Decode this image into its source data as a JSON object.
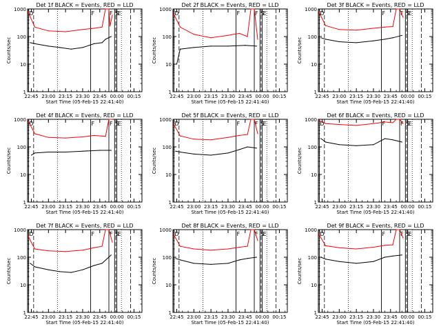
{
  "figure": {
    "xlabel": "Start Time (05-Feb-15 22:41:40)",
    "ylabel": "Counts/sec",
    "x_tick_labels": [
      "22:45",
      "23:00",
      "23:15",
      "23:30",
      "23:45",
      "00:00",
      "00:15"
    ],
    "y_tick_labels": [
      "1",
      "10",
      "100",
      "1000"
    ],
    "colors": {
      "events": "#000000",
      "lld": "#ff0000",
      "axes": "#000000"
    }
  },
  "chart_data": [
    {
      "type": "line",
      "title": "Det 1f BLACK = Events, RED = LLD",
      "ylim": [
        1,
        1000
      ],
      "xlim": [
        "22:41:40",
        "00:22"
      ],
      "markers": [
        {
          "time": "22:42:30",
          "label": "D"
        },
        {
          "time": "23:37",
          "label": "F"
        },
        {
          "time": "23:53",
          "label": "F"
        },
        {
          "time": "23:58",
          "label": "S"
        },
        {
          "time": "00:00",
          "label": "E"
        }
      ],
      "series": [
        {
          "name": "LLD",
          "color": "#ff0000",
          "x": [
            "22:42",
            "22:48",
            "23:00",
            "23:15",
            "23:30",
            "23:40",
            "23:47",
            "23:50",
            "23:53",
            "23:54",
            "23:56"
          ],
          "values": [
            800,
            220,
            160,
            150,
            180,
            200,
            220,
            1000,
            1000,
            240,
            600
          ]
        },
        {
          "name": "Events",
          "color": "#000000",
          "x": [
            "22:44",
            "22:48",
            "23:00",
            "23:10",
            "23:20",
            "23:30",
            "23:40",
            "23:47",
            "23:50",
            "23:55"
          ],
          "values": [
            60,
            55,
            45,
            40,
            35,
            40,
            55,
            60,
            80,
            100
          ]
        }
      ]
    },
    {
      "type": "line",
      "title": "Det 2f BLACK = Events, RED = LLD",
      "ylim": [
        1,
        1000
      ],
      "xlim": [
        "22:41:40",
        "00:22"
      ],
      "markers": [
        {
          "time": "22:42:30",
          "label": "D"
        },
        {
          "time": "23:37",
          "label": "F"
        },
        {
          "time": "23:53",
          "label": "F"
        },
        {
          "time": "23:58",
          "label": "S"
        },
        {
          "time": "00:00",
          "label": "E"
        }
      ],
      "series": [
        {
          "name": "LLD",
          "color": "#ff0000",
          "x": [
            "22:42",
            "22:48",
            "23:00",
            "23:15",
            "23:30",
            "23:40",
            "23:47",
            "23:50",
            "23:53",
            "23:56"
          ],
          "values": [
            700,
            220,
            120,
            90,
            110,
            130,
            100,
            1000,
            1000,
            80
          ]
        },
        {
          "name": "Events",
          "color": "#000000",
          "x": [
            "22:45",
            "22:48",
            "23:00",
            "23:15",
            "23:30",
            "23:45",
            "23:55"
          ],
          "values": [
            10,
            35,
            40,
            45,
            45,
            48,
            45
          ]
        }
      ]
    },
    {
      "type": "line",
      "title": "Det 3f BLACK = Events, RED = LLD",
      "ylim": [
        1,
        1000
      ],
      "xlim": [
        "22:41:40",
        "00:22"
      ],
      "markers": [
        {
          "time": "22:42:30",
          "label": "D"
        },
        {
          "time": "23:37",
          "label": "F"
        },
        {
          "time": "23:53",
          "label": "F"
        },
        {
          "time": "23:58",
          "label": "S"
        },
        {
          "time": "00:00",
          "label": "E"
        }
      ],
      "series": [
        {
          "name": "LLD",
          "color": "#ff0000",
          "x": [
            "22:42",
            "22:48",
            "23:00",
            "23:15",
            "23:30",
            "23:40",
            "23:47",
            "23:50",
            "23:53",
            "23:56"
          ],
          "values": [
            800,
            250,
            180,
            170,
            200,
            220,
            230,
            1000,
            1000,
            500
          ]
        },
        {
          "name": "Events",
          "color": "#000000",
          "x": [
            "22:44",
            "22:48",
            "23:00",
            "23:15",
            "23:30",
            "23:40",
            "23:47",
            "23:55"
          ],
          "values": [
            90,
            80,
            65,
            60,
            70,
            80,
            90,
            110
          ]
        }
      ]
    },
    {
      "type": "line",
      "title": "Det 4f BLACK = Events, RED = LLD",
      "ylim": [
        1,
        1000
      ],
      "xlim": [
        "22:41:40",
        "00:22"
      ],
      "markers": [
        {
          "time": "22:42:30",
          "label": "D"
        },
        {
          "time": "23:37",
          "label": "F"
        },
        {
          "time": "23:53",
          "label": "F"
        },
        {
          "time": "23:58",
          "label": "S"
        },
        {
          "time": "00:00",
          "label": "E"
        }
      ],
      "series": [
        {
          "name": "LLD",
          "color": "#ff0000",
          "x": [
            "22:42",
            "22:48",
            "23:00",
            "23:15",
            "23:30",
            "23:40",
            "23:50",
            "23:53",
            "23:56"
          ],
          "values": [
            900,
            300,
            220,
            210,
            230,
            260,
            240,
            1000,
            1000
          ]
        },
        {
          "name": "Events",
          "color": "#000000",
          "x": [
            "22:45",
            "22:48",
            "23:00",
            "23:15",
            "23:30",
            "23:45",
            "23:55"
          ],
          "values": [
            50,
            60,
            65,
            65,
            70,
            75,
            75
          ]
        }
      ]
    },
    {
      "type": "line",
      "title": "Det 5f BLACK = Events, RED = LLD",
      "ylim": [
        1,
        1000
      ],
      "xlim": [
        "22:41:40",
        "00:22"
      ],
      "markers": [
        {
          "time": "22:42:30",
          "label": "D"
        },
        {
          "time": "23:37",
          "label": "F"
        },
        {
          "time": "23:53",
          "label": "F"
        },
        {
          "time": "23:58",
          "label": "S"
        },
        {
          "time": "00:00",
          "label": "E"
        }
      ],
      "series": [
        {
          "name": "LLD",
          "color": "#ff0000",
          "x": [
            "22:42",
            "22:48",
            "23:00",
            "23:15",
            "23:30",
            "23:40",
            "23:47",
            "23:50",
            "23:53",
            "23:56"
          ],
          "values": [
            700,
            250,
            190,
            180,
            220,
            260,
            280,
            1000,
            1000,
            300
          ]
        },
        {
          "name": "Events",
          "color": "#000000",
          "x": [
            "22:44",
            "22:48",
            "23:00",
            "23:15",
            "23:30",
            "23:40",
            "23:47",
            "23:55"
          ],
          "values": [
            70,
            65,
            55,
            50,
            60,
            80,
            100,
            90
          ]
        }
      ]
    },
    {
      "type": "line",
      "title": "Det 6f BLACK = Events, RED = LLD",
      "ylim": [
        1,
        1000
      ],
      "xlim": [
        "22:41:40",
        "00:22"
      ],
      "markers": [
        {
          "time": "22:42:30",
          "label": "D"
        },
        {
          "time": "23:37",
          "label": "F"
        },
        {
          "time": "23:53",
          "label": "F"
        },
        {
          "time": "23:58",
          "label": "S"
        },
        {
          "time": "00:00",
          "label": "E"
        }
      ],
      "series": [
        {
          "name": "LLD",
          "color": "#ff0000",
          "x": [
            "22:42",
            "22:48",
            "23:00",
            "23:15",
            "23:30",
            "23:40",
            "23:47",
            "23:50",
            "23:53",
            "23:56"
          ],
          "values": [
            900,
            700,
            650,
            600,
            700,
            800,
            750,
            1000,
            1000,
            700
          ]
        },
        {
          "name": "Events",
          "color": "#000000",
          "x": [
            "22:44",
            "22:48",
            "23:00",
            "23:15",
            "23:30",
            "23:40",
            "23:47",
            "23:55"
          ],
          "values": [
            200,
            150,
            120,
            110,
            120,
            200,
            180,
            150
          ]
        }
      ]
    },
    {
      "type": "line",
      "title": "Det 7f BLACK = Events, RED = LLD",
      "ylim": [
        1,
        1000
      ],
      "xlim": [
        "22:41:40",
        "00:22"
      ],
      "markers": [
        {
          "time": "22:42:30",
          "label": "D"
        },
        {
          "time": "23:37",
          "label": "F"
        },
        {
          "time": "23:53",
          "label": "F"
        },
        {
          "time": "23:58",
          "label": "S"
        },
        {
          "time": "00:00",
          "label": "E"
        }
      ],
      "series": [
        {
          "name": "LLD",
          "color": "#ff0000",
          "x": [
            "22:42",
            "22:48",
            "23:00",
            "23:15",
            "23:30",
            "23:40",
            "23:47",
            "23:50",
            "23:53",
            "23:56"
          ],
          "values": [
            600,
            200,
            170,
            160,
            180,
            220,
            250,
            1000,
            1000,
            350
          ]
        },
        {
          "name": "Events",
          "color": "#000000",
          "x": [
            "22:44",
            "22:48",
            "23:00",
            "23:10",
            "23:20",
            "23:30",
            "23:40",
            "23:47",
            "23:55"
          ],
          "values": [
            60,
            45,
            35,
            30,
            28,
            35,
            50,
            60,
            120
          ]
        }
      ]
    },
    {
      "type": "line",
      "title": "Det 8f BLACK = Events, RED = LLD",
      "ylim": [
        1,
        1000
      ],
      "xlim": [
        "22:41:40",
        "00:22"
      ],
      "markers": [
        {
          "time": "22:42:30",
          "label": "D"
        },
        {
          "time": "23:37",
          "label": "F"
        },
        {
          "time": "23:53",
          "label": "F"
        },
        {
          "time": "23:58",
          "label": "S"
        },
        {
          "time": "00:00",
          "label": "E"
        }
      ],
      "series": [
        {
          "name": "LLD",
          "color": "#ff0000",
          "x": [
            "22:42",
            "22:48",
            "23:00",
            "23:15",
            "23:30",
            "23:40",
            "23:47",
            "23:50",
            "23:53",
            "23:56"
          ],
          "values": [
            700,
            250,
            200,
            180,
            200,
            230,
            250,
            1000,
            1000,
            400
          ]
        },
        {
          "name": "Events",
          "color": "#000000",
          "x": [
            "22:44",
            "22:48",
            "23:00",
            "23:15",
            "23:30",
            "23:40",
            "23:47",
            "23:55"
          ],
          "values": [
            90,
            80,
            60,
            55,
            60,
            80,
            90,
            100
          ]
        }
      ]
    },
    {
      "type": "line",
      "title": "Det 9f BLACK = Events, RED = LLD",
      "ylim": [
        1,
        1000
      ],
      "xlim": [
        "22:41:40",
        "00:22"
      ],
      "markers": [
        {
          "time": "22:42:30",
          "label": "D"
        },
        {
          "time": "23:37",
          "label": "F"
        },
        {
          "time": "23:53",
          "label": "F"
        },
        {
          "time": "23:58",
          "label": "S"
        },
        {
          "time": "00:00",
          "label": "E"
        }
      ],
      "series": [
        {
          "name": "LLD",
          "color": "#ff0000",
          "x": [
            "22:42",
            "22:48",
            "23:00",
            "23:15",
            "23:30",
            "23:40",
            "23:47",
            "23:50",
            "23:53",
            "23:56"
          ],
          "values": [
            700,
            260,
            220,
            200,
            230,
            270,
            280,
            1000,
            1000,
            500
          ]
        },
        {
          "name": "Events",
          "color": "#000000",
          "x": [
            "22:44",
            "22:48",
            "23:00",
            "23:15",
            "23:30",
            "23:40",
            "23:47",
            "23:55"
          ],
          "values": [
            100,
            85,
            70,
            60,
            70,
            100,
            110,
            120
          ]
        }
      ]
    }
  ]
}
